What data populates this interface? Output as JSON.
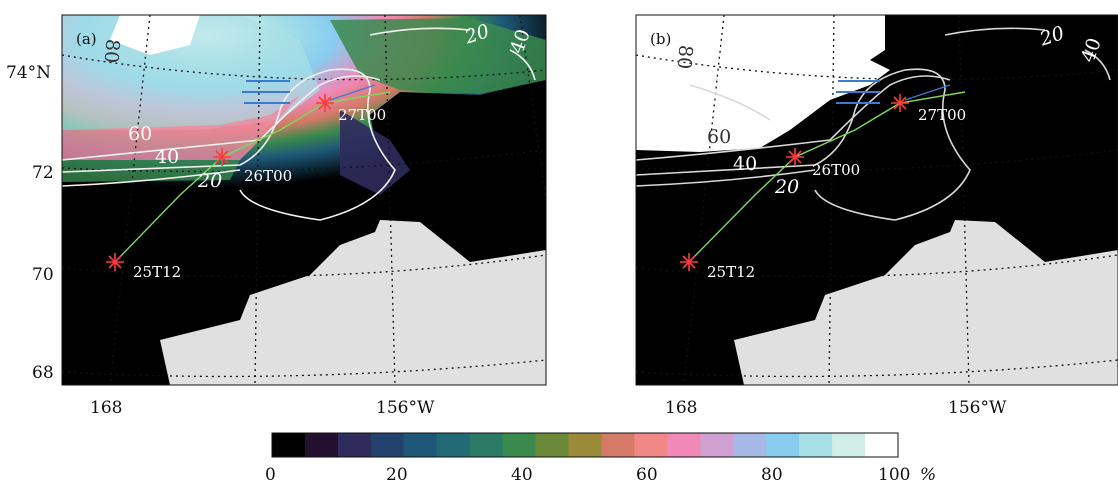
{
  "panels": [
    {
      "id": "a",
      "label": "(a)"
    },
    {
      "id": "b",
      "label": "(b)"
    }
  ],
  "lat_labels": [
    "74°N",
    "72",
    "70",
    "68"
  ],
  "lon_labels": [
    "168",
    "156°W"
  ],
  "track_points": [
    "25T12",
    "26T00",
    "27T00"
  ],
  "contour_labels": {
    "a": [
      "80",
      "60",
      "40",
      "20",
      "20",
      "40"
    ],
    "b": [
      "80",
      "60",
      "40",
      "20",
      "20",
      "40"
    ]
  },
  "colorbar": {
    "ticks": [
      "0",
      "20",
      "40",
      "60",
      "80",
      "100"
    ],
    "unit": "%",
    "colors": [
      "#000000",
      "#23102e",
      "#2f2b5c",
      "#23436e",
      "#1e5878",
      "#216a76",
      "#2a7a66",
      "#3a8a4e",
      "#6a8a3a",
      "#9a8a3a",
      "#d47a66",
      "#f08888",
      "#f088b8",
      "#d0a0d0",
      "#a8b8e6",
      "#88ccf0",
      "#a8e0e6",
      "#d0eee6",
      "#ffffff"
    ]
  }
}
